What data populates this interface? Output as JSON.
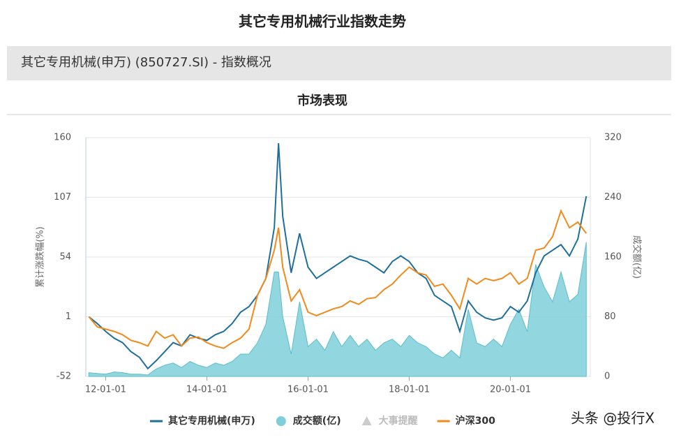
{
  "page_title": "其它专用机械行业指数走势",
  "section_header": "其它专用机械(申万) (850727.SI) - 指数概况",
  "watermark": "头条 @投行X",
  "chart_data": {
    "type": "line",
    "title": "市场表现",
    "y_label": "累计涨跌幅(%)",
    "y2_label": "成交额(亿)",
    "event_legend": "大事提醒",
    "x": [
      "11-09-01",
      "11-11-01",
      "12-01-01",
      "12-03-01",
      "12-05-01",
      "12-07-01",
      "12-09-01",
      "12-11-01",
      "13-01-01",
      "13-03-01",
      "13-05-01",
      "13-07-01",
      "13-09-01",
      "13-11-01",
      "14-01-01",
      "14-03-01",
      "14-05-01",
      "14-07-01",
      "14-09-01",
      "14-11-01",
      "15-01-01",
      "15-03-01",
      "15-05-01",
      "15-06-01",
      "15-07-01",
      "15-09-01",
      "15-11-01",
      "16-01-01",
      "16-03-01",
      "16-05-01",
      "16-07-01",
      "16-09-01",
      "16-11-01",
      "17-01-01",
      "17-03-01",
      "17-05-01",
      "17-07-01",
      "17-09-01",
      "17-11-01",
      "18-01-01",
      "18-03-01",
      "18-05-01",
      "18-07-01",
      "18-09-01",
      "18-11-01",
      "19-01-01",
      "19-03-01",
      "19-05-01",
      "19-07-01",
      "19-09-01",
      "19-11-01",
      "20-01-01",
      "20-03-01",
      "20-05-01",
      "20-07-01",
      "20-09-01",
      "20-11-01",
      "21-01-01",
      "21-03-01",
      "21-05-01",
      "21-07-01"
    ],
    "xlim": [
      "11-08-10",
      "21-07-30"
    ],
    "xticks": [
      "12-01-01",
      "14-01-01",
      "16-01-01",
      "18-01-01",
      "20-01-01"
    ],
    "ylim": [
      -52,
      160
    ],
    "yticks": [
      -52,
      1,
      54,
      107,
      160
    ],
    "y2lim": [
      0,
      320
    ],
    "y2ticks": [
      0,
      80,
      160,
      240,
      320
    ],
    "grid": true,
    "series": [
      {
        "name": "其它专用机械(申万)",
        "color": "#1f6f9a",
        "kind": "line",
        "values": [
          1,
          -5,
          -12,
          -18,
          -22,
          -30,
          -35,
          -45,
          -38,
          -30,
          -22,
          -25,
          -15,
          -18,
          -20,
          -15,
          -12,
          -5,
          5,
          10,
          20,
          35,
          80,
          155,
          90,
          40,
          75,
          45,
          35,
          40,
          45,
          50,
          55,
          52,
          50,
          45,
          40,
          50,
          55,
          50,
          40,
          35,
          20,
          15,
          10,
          -12,
          15,
          5,
          0,
          -2,
          0,
          10,
          5,
          15,
          40,
          55,
          60,
          65,
          55,
          70,
          108
        ]
      },
      {
        "name": "成交额(亿)",
        "color": "#7fcfd9",
        "kind": "area",
        "axis": "y2",
        "values": [
          5,
          4,
          3,
          6,
          5,
          3,
          3,
          2,
          10,
          15,
          18,
          12,
          20,
          15,
          12,
          18,
          15,
          20,
          30,
          30,
          45,
          70,
          140,
          140,
          80,
          30,
          100,
          40,
          50,
          35,
          60,
          40,
          55,
          40,
          50,
          35,
          45,
          50,
          40,
          55,
          45,
          40,
          30,
          25,
          35,
          25,
          90,
          45,
          40,
          50,
          40,
          70,
          90,
          60,
          150,
          120,
          100,
          140,
          100,
          110,
          180
        ]
      },
      {
        "name": "沪深300",
        "color": "#f08a1c",
        "kind": "line",
        "values": [
          1,
          -8,
          -10,
          -12,
          -15,
          -20,
          -22,
          -25,
          -12,
          -18,
          -15,
          -25,
          -18,
          -17,
          -22,
          -25,
          -27,
          -22,
          -18,
          -10,
          20,
          35,
          60,
          80,
          45,
          15,
          25,
          5,
          2,
          5,
          8,
          10,
          15,
          12,
          17,
          18,
          25,
          30,
          38,
          45,
          40,
          38,
          28,
          30,
          20,
          8,
          35,
          30,
          35,
          33,
          35,
          40,
          30,
          35,
          60,
          62,
          72,
          95,
          80,
          85,
          75
        ]
      }
    ]
  }
}
